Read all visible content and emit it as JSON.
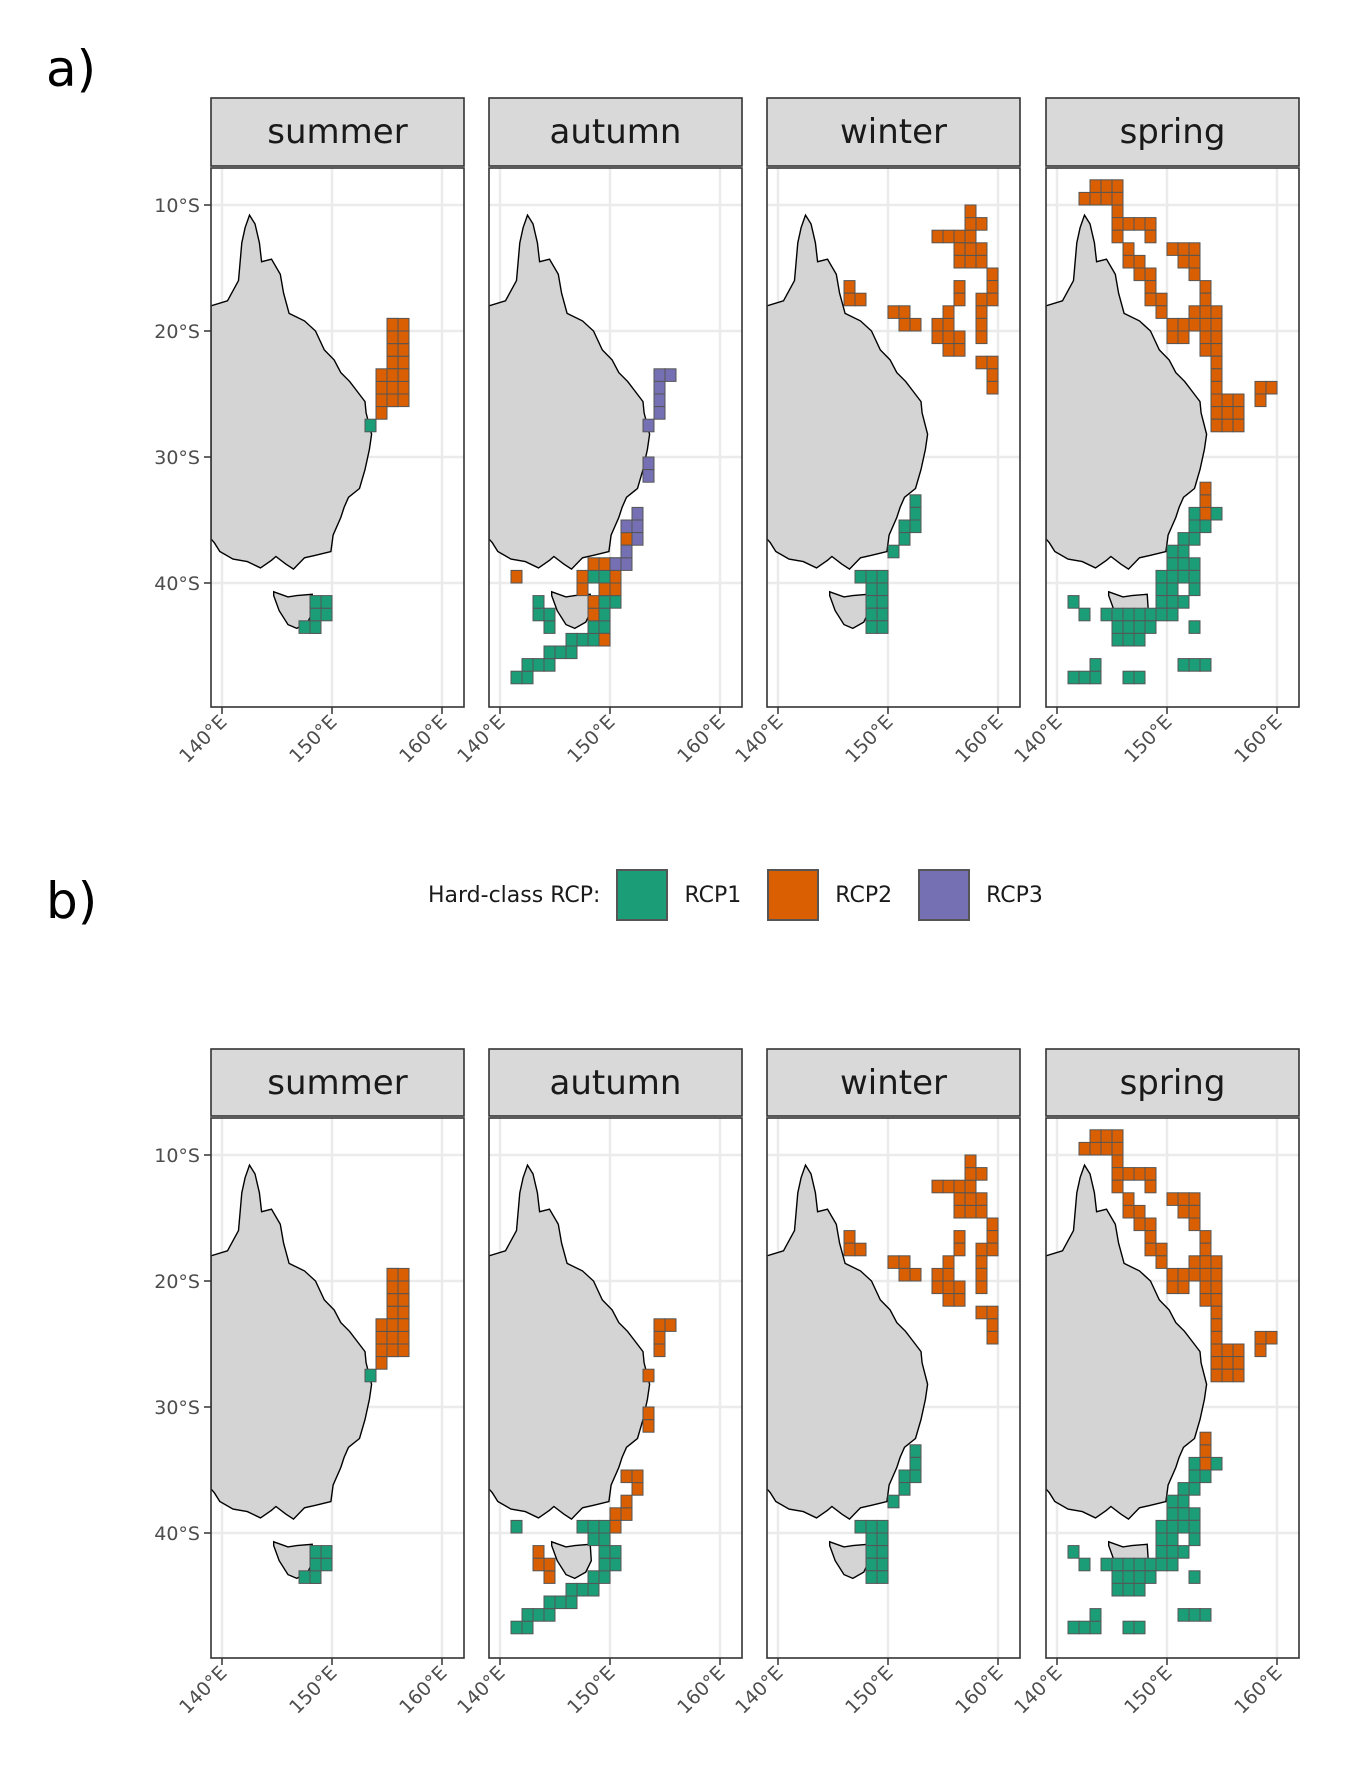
{
  "panels": [
    {
      "letter": "a)",
      "facets": [
        "summer",
        "autumn",
        "winter",
        "spring"
      ]
    },
    {
      "letter": "b)",
      "facets": [
        "summer",
        "autumn",
        "winter",
        "spring"
      ]
    }
  ],
  "axes": {
    "lat_ticks": [
      {
        "value": -10,
        "label": "10°S"
      },
      {
        "value": -20,
        "label": "20°S"
      },
      {
        "value": -30,
        "label": "30°S"
      },
      {
        "value": -40,
        "label": "40°S"
      }
    ],
    "lon_ticks": [
      {
        "value": 140,
        "label": "140°E"
      },
      {
        "value": 150,
        "label": "150°E"
      },
      {
        "value": 160,
        "label": "160°E"
      }
    ],
    "lon_range": [
      139,
      161
    ],
    "lat_range": [
      -49,
      -6
    ]
  },
  "legend": {
    "title": "Hard-class RCP:",
    "items": [
      {
        "label": "RCP1",
        "color": "#1b9e77"
      },
      {
        "label": "RCP2",
        "color": "#d95f02"
      },
      {
        "label": "RCP3",
        "color": "#7570b3"
      }
    ]
  },
  "colors": {
    "land": "#d4d4d4",
    "coast": "#000000",
    "grid": "#ebebeb",
    "strip_bg": "#d9d9d9",
    "cell_border": "#555555"
  }
}
